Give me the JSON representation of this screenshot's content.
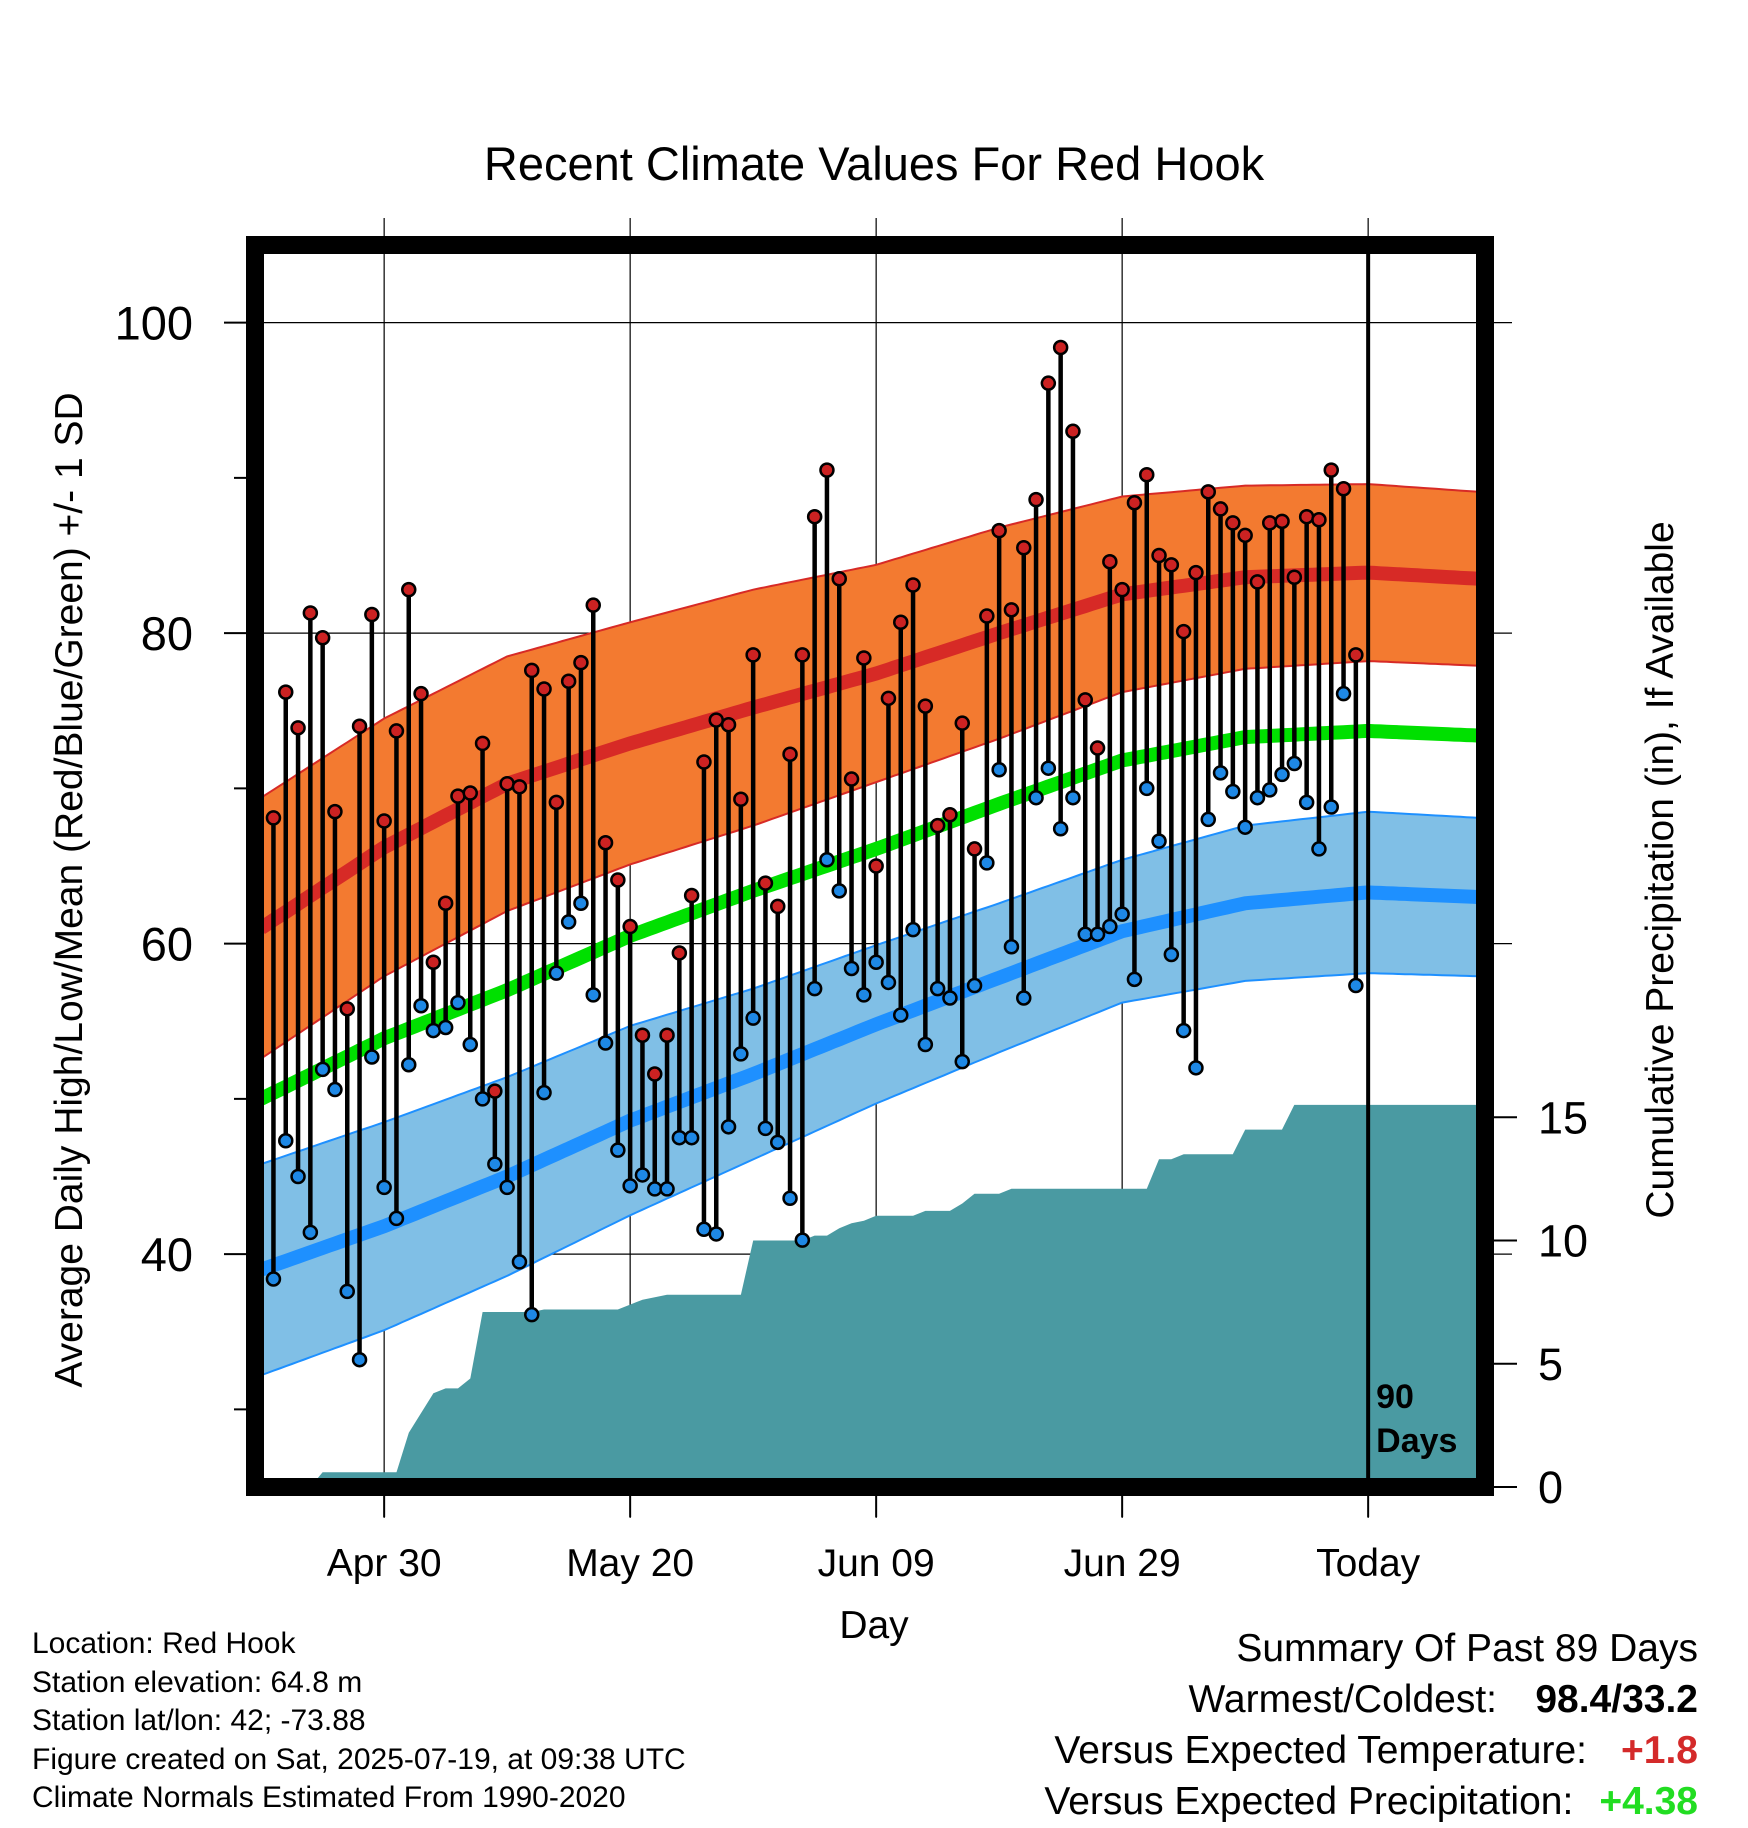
{
  "chart_data": {
    "type": "line",
    "title": "Recent Climate Values For Red Hook",
    "xlabel": "Day",
    "ylabel": "Average Daily High/Low/Mean (Red/Blue/Green) +/- 1 SD",
    "y2label": "Cumulative Precipitation (in), If Available",
    "ylim": [
      25,
      105
    ],
    "y2lim": [
      0,
      20
    ],
    "yticks": [
      40,
      60,
      80,
      100
    ],
    "y2ticks": [
      0,
      5,
      10,
      15
    ],
    "xlim": [
      -90.5,
      9.5
    ],
    "xticks": [
      {
        "day": -80,
        "label": "Apr 30"
      },
      {
        "day": -60,
        "label": "May 20"
      },
      {
        "day": -40,
        "label": "Jun 09"
      },
      {
        "day": -20,
        "label": "Jun 29"
      },
      {
        "day": 0,
        "label": "Today"
      }
    ],
    "today_marker_label": [
      "90",
      "Days"
    ],
    "grid": true,
    "normals": {
      "days": [
        -90,
        -80,
        -70,
        -60,
        -50,
        -40,
        -30,
        -20,
        -10,
        0,
        9
      ],
      "high_mean": [
        61.0,
        66.2,
        70.3,
        72.9,
        75.2,
        77.4,
        80.0,
        82.5,
        83.6,
        83.9,
        83.5
      ],
      "high_sd": [
        8.4,
        8.3,
        8.2,
        7.8,
        7.6,
        7.0,
        6.8,
        6.3,
        5.9,
        5.7,
        5.6
      ],
      "mean": [
        50.0,
        53.9,
        57.0,
        60.5,
        63.4,
        66.1,
        69.0,
        71.8,
        73.3,
        73.7,
        73.4
      ],
      "low_mean": [
        39.0,
        41.8,
        45.0,
        48.6,
        51.6,
        54.8,
        57.8,
        60.8,
        62.6,
        63.3,
        63.0
      ],
      "low_sd": [
        6.8,
        6.7,
        6.4,
        6.1,
        5.5,
        5.1,
        4.8,
        4.6,
        5.0,
        5.2,
        5.1
      ],
      "colors": {
        "high_band": "#f37a30",
        "high_line": "#d72a26",
        "mean_line": "#00e000",
        "low_band": "#80bfe6",
        "low_line": "#1e90ff",
        "precip": "#4a9aa2"
      }
    },
    "series": [
      {
        "name": "High",
        "color": "#cc2222",
        "values": [
          68.1,
          76.2,
          73.9,
          81.3,
          79.7,
          68.5,
          55.8,
          74.0,
          81.2,
          67.9,
          73.7,
          82.8,
          76.1,
          58.8,
          62.6,
          69.5,
          69.7,
          72.9,
          50.5,
          70.3,
          70.1,
          77.6,
          76.4,
          69.1,
          76.9,
          78.1,
          81.8,
          66.5,
          64.1,
          61.1,
          54.1,
          51.6,
          54.1,
          59.4,
          63.1,
          71.7,
          74.4,
          74.1,
          69.3,
          78.6,
          63.9,
          62.4,
          72.2,
          78.6,
          87.5,
          90.5,
          83.5,
          70.6,
          78.4,
          65.0,
          75.8,
          80.7,
          83.1,
          75.3,
          67.6,
          68.3,
          74.2,
          66.1,
          81.1,
          86.6,
          81.5,
          85.5,
          88.6,
          96.1,
          98.4,
          93.0,
          75.7,
          72.6,
          84.6,
          82.8,
          88.4,
          90.2,
          85.0,
          84.4,
          80.1,
          83.9,
          89.1,
          88.0,
          87.1,
          86.3,
          83.3,
          87.1,
          87.2,
          83.6,
          87.5,
          87.3,
          90.5,
          89.3,
          78.6
        ]
      },
      {
        "name": "Low",
        "color": "#1e88e5",
        "values": [
          38.4,
          47.3,
          45.0,
          41.4,
          51.9,
          50.6,
          37.6,
          33.2,
          52.7,
          44.3,
          42.3,
          52.2,
          56.0,
          54.4,
          54.6,
          56.2,
          53.5,
          50.0,
          45.8,
          44.3,
          39.5,
          36.1,
          50.4,
          58.1,
          61.4,
          62.6,
          56.7,
          53.6,
          46.7,
          44.4,
          45.1,
          44.2,
          44.2,
          47.5,
          47.5,
          41.6,
          41.3,
          48.2,
          52.9,
          55.2,
          48.1,
          47.2,
          43.6,
          40.9,
          57.1,
          65.4,
          63.4,
          58.4,
          56.7,
          58.8,
          57.5,
          55.4,
          60.9,
          53.5,
          57.1,
          56.5,
          52.4,
          57.3,
          65.2,
          71.2,
          59.8,
          56.5,
          69.4,
          71.3,
          67.4,
          69.4,
          60.6,
          60.6,
          61.1,
          61.9,
          57.7,
          70.0,
          66.6,
          59.3,
          54.4,
          52.0,
          68.0,
          71.0,
          69.8,
          67.5,
          69.4,
          69.9,
          70.9,
          71.6,
          69.1,
          66.1,
          68.8,
          76.1,
          57.3
        ]
      },
      {
        "name": "Cumulative Precipitation",
        "color": "#4a9aa2",
        "values": [
          0,
          0,
          0,
          0,
          0,
          0.6,
          0.6,
          0.6,
          0.6,
          0.6,
          0.6,
          0.6,
          2.2,
          3.0,
          3.8,
          4.0,
          4.0,
          4.4,
          7.1,
          7.1,
          7.1,
          7.1,
          7.1,
          7.2,
          7.2,
          7.2,
          7.2,
          7.2,
          7.2,
          7.2,
          7.4,
          7.6,
          7.7,
          7.8,
          7.8,
          7.8,
          7.8,
          7.8,
          7.8,
          7.8,
          10.0,
          10.0,
          10.0,
          10.0,
          10.0,
          10.2,
          10.2,
          10.5,
          10.7,
          10.8,
          11.0,
          11.0,
          11.0,
          11.0,
          11.2,
          11.2,
          11.2,
          11.5,
          11.9,
          11.9,
          11.9,
          12.1,
          12.1,
          12.1,
          12.1,
          12.1,
          12.1,
          12.1,
          12.1,
          12.1,
          12.1,
          12.1,
          12.1,
          13.3,
          13.3,
          13.5,
          13.5,
          13.5,
          13.5,
          13.5,
          14.5,
          14.5,
          14.5,
          14.5,
          15.5,
          15.5,
          15.5,
          15.5,
          15.5,
          15.5,
          15.5,
          15.5,
          15.5,
          15.5,
          15.5,
          15.5,
          15.5,
          15.5,
          15.5,
          15.5
        ]
      }
    ]
  },
  "info": {
    "location": "Location: Red Hook",
    "elevation": "Station elevation: 64.8 m",
    "latlon": "Station lat/lon: 42; -73.88",
    "created": "Figure created on Sat, 2025-07-19, at 09:38 UTC",
    "normals": "Climate Normals Estimated From 1990-2020"
  },
  "summary": {
    "title": "Summary Of Past 89 Days",
    "warm_cold_label": "Warmest/Coldest:",
    "warm_cold_value": "98.4/33.2",
    "temp_label": "Versus Expected Temperature:",
    "temp_value": "+1.8",
    "temp_color": "#d42a2a",
    "precip_label": "Versus Expected Precipitation:",
    "precip_value": "+4.38",
    "precip_color": "#22dd22"
  }
}
